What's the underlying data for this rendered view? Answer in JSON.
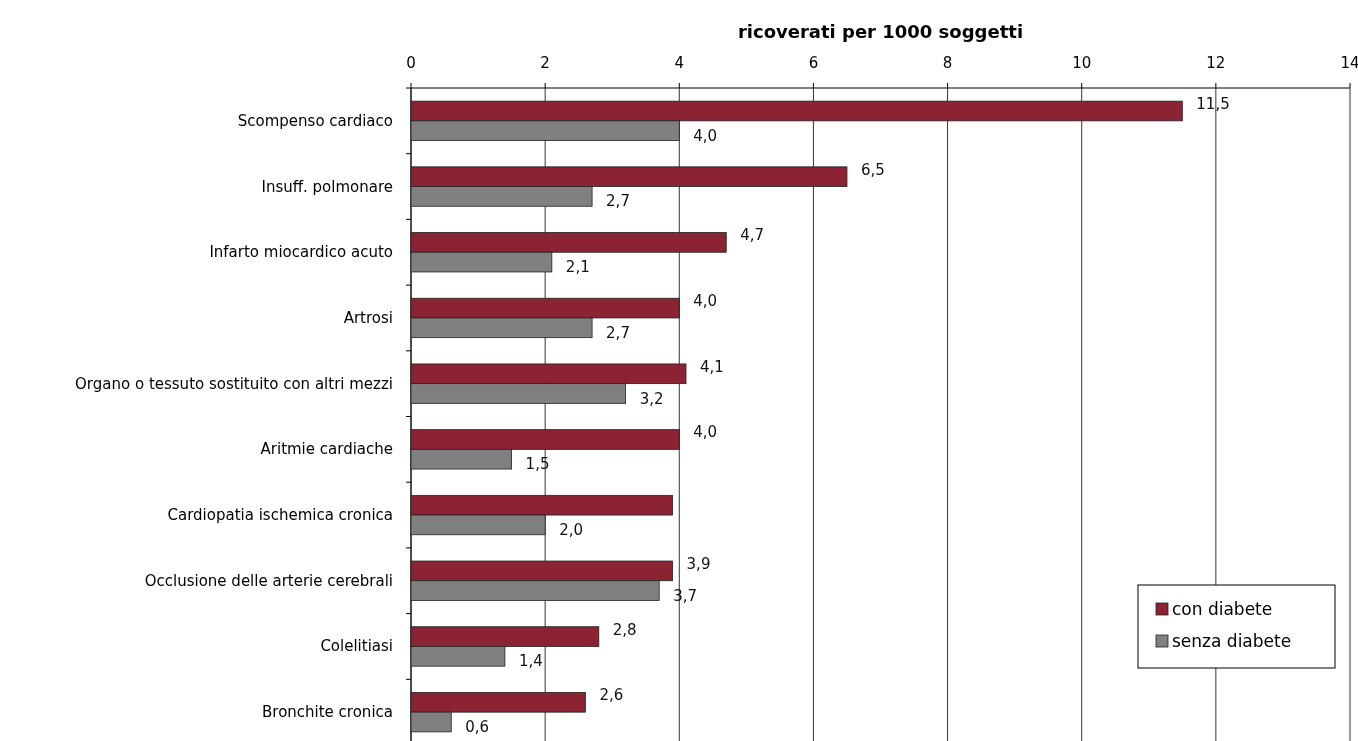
{
  "chart_data": {
    "type": "bar",
    "orientation": "horizontal",
    "title": "ricoverati per 1000 soggetti",
    "categories": [
      "Scompenso cardiaco",
      "Insuff. polmonare",
      "Infarto miocardico acuto",
      "Artrosi",
      "Organo o tessuto sostituito con altri mezzi",
      "Aritmie cardiache",
      "Cardiopatia ischemica cronica",
      "Occlusione delle arterie cerebrali",
      "Colelitiasi",
      "Bronchite cronica"
    ],
    "series": [
      {
        "name": "con diabete",
        "color": "#8b2332",
        "values": [
          11.5,
          6.5,
          4.7,
          4.0,
          4.1,
          4.0,
          3.9,
          3.9,
          2.8,
          2.6
        ],
        "value_labels": [
          "11,5",
          "6,5",
          "4,7",
          "4,0",
          "4,1",
          "4,0",
          null,
          "3,9",
          "2,8",
          "2,6"
        ]
      },
      {
        "name": "senza diabete",
        "color": "#808080",
        "values": [
          4.0,
          2.7,
          2.1,
          2.7,
          3.2,
          1.5,
          2.0,
          3.7,
          1.4,
          0.6
        ],
        "value_labels": [
          "4,0",
          "2,7",
          "2,1",
          "2,7",
          "3,2",
          "1,5",
          "2,0",
          "3,7",
          "1,4",
          "0,6"
        ]
      }
    ],
    "xlim": [
      0,
      14
    ],
    "xticks": [
      0,
      2,
      4,
      6,
      8,
      10,
      12,
      14
    ],
    "grid": "x",
    "legend": "bottom right"
  }
}
